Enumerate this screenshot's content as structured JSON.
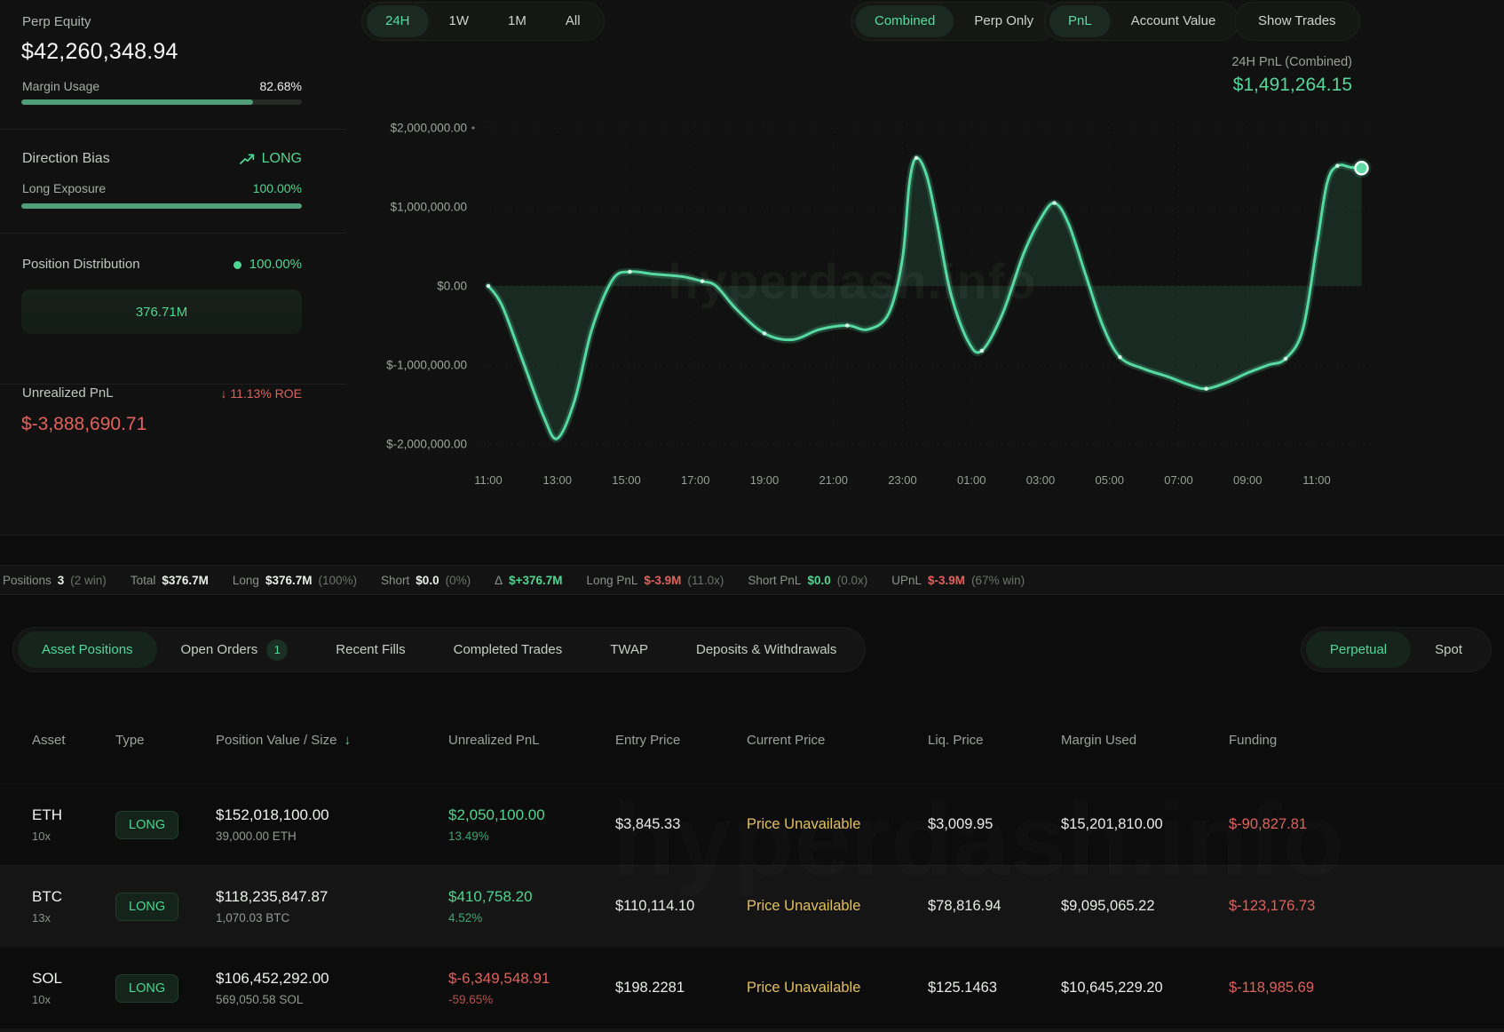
{
  "stats": {
    "perp_equity": {
      "label": "Perp Equity",
      "value": "$42,260,348.94"
    },
    "margin_usage": {
      "label": "Margin Usage",
      "value": "82.68%",
      "percent": 82.68
    },
    "direction_bias": {
      "label": "Direction Bias",
      "value": "LONG"
    },
    "long_exposure": {
      "label": "Long Exposure",
      "value": "100.00%",
      "percent": 100
    },
    "position_distribution": {
      "label": "Position Distribution",
      "value": "100.00%",
      "bar_value": "376.71M"
    },
    "unrealized_pnl": {
      "label": "Unrealized PnL",
      "roe": "11.13% ROE",
      "value": "$-3,888,690.71"
    }
  },
  "chart_controls": {
    "time_ranges": [
      {
        "label": "24H",
        "active": true
      },
      {
        "label": "1W",
        "active": false
      },
      {
        "label": "1M",
        "active": false
      },
      {
        "label": "All",
        "active": false
      }
    ],
    "source_toggle": [
      {
        "label": "Combined",
        "active": true
      },
      {
        "label": "Perp Only",
        "active": false
      }
    ],
    "metric_toggle": [
      {
        "label": "PnL",
        "active": true
      },
      {
        "label": "Account Value",
        "active": false
      }
    ],
    "show_trades_label": "Show Trades",
    "pnl_header": {
      "label": "24H PnL (Combined)",
      "value": "$1,491,264.15"
    }
  },
  "chart_data": {
    "type": "area",
    "title": "24H PnL (Combined)",
    "unit": "USD",
    "watermark": "hyperdash.info",
    "x_ticks": [
      "11:00",
      "13:00",
      "15:00",
      "17:00",
      "19:00",
      "21:00",
      "23:00",
      "01:00",
      "03:00",
      "05:00",
      "07:00",
      "09:00",
      "11:00"
    ],
    "hours_per_tick": 2,
    "y_ticks": [
      {
        "label": "$2,000,000.00",
        "value": 2000000
      },
      {
        "label": "$1,000,000.00",
        "value": 1000000
      },
      {
        "label": "$0.00",
        "value": 0
      },
      {
        "label": "$-1,000,000.00",
        "value": -1000000
      },
      {
        "label": "$-2,000,000.00",
        "value": -2000000
      }
    ],
    "ylim": [
      -2180000,
      2180000
    ],
    "grid": "dotted",
    "series": [
      {
        "name": "24H PnL (Combined)",
        "color": "#57d9a2",
        "points": [
          [
            0,
            0
          ],
          [
            0.4,
            -250000
          ],
          [
            1.0,
            -950000
          ],
          [
            1.6,
            -1650000
          ],
          [
            2.0,
            -1930000
          ],
          [
            2.5,
            -1450000
          ],
          [
            3.0,
            -550000
          ],
          [
            3.6,
            80000
          ],
          [
            4.1,
            180000
          ],
          [
            4.8,
            150000
          ],
          [
            5.6,
            120000
          ],
          [
            6.2,
            60000
          ],
          [
            6.6,
            0
          ],
          [
            7.2,
            -300000
          ],
          [
            8.0,
            -600000
          ],
          [
            8.8,
            -680000
          ],
          [
            9.6,
            -550000
          ],
          [
            10.4,
            -500000
          ],
          [
            11.0,
            -550000
          ],
          [
            11.6,
            -350000
          ],
          [
            12.0,
            350000
          ],
          [
            12.2,
            1300000
          ],
          [
            12.4,
            1620000
          ],
          [
            12.7,
            1400000
          ],
          [
            13.0,
            800000
          ],
          [
            13.4,
            -100000
          ],
          [
            13.9,
            -700000
          ],
          [
            14.3,
            -820000
          ],
          [
            14.9,
            -350000
          ],
          [
            15.5,
            400000
          ],
          [
            16.0,
            850000
          ],
          [
            16.4,
            1050000
          ],
          [
            16.8,
            800000
          ],
          [
            17.3,
            150000
          ],
          [
            17.8,
            -500000
          ],
          [
            18.3,
            -900000
          ],
          [
            19.0,
            -1050000
          ],
          [
            19.7,
            -1150000
          ],
          [
            20.3,
            -1250000
          ],
          [
            20.8,
            -1300000
          ],
          [
            21.4,
            -1220000
          ],
          [
            22.0,
            -1100000
          ],
          [
            22.6,
            -1000000
          ],
          [
            23.1,
            -920000
          ],
          [
            23.6,
            -550000
          ],
          [
            24.0,
            500000
          ],
          [
            24.3,
            1300000
          ],
          [
            24.6,
            1520000
          ],
          [
            25.0,
            1500000
          ],
          [
            25.3,
            1491264
          ]
        ]
      }
    ],
    "dot_offsets": [
      0,
      4.1,
      6.2,
      8.0,
      10.4,
      12.4,
      14.3,
      16.4,
      18.3,
      20.8,
      23.1,
      24.6
    ],
    "end_value": 1491264.15
  },
  "summary_bar": {
    "items": [
      {
        "label": "Positions",
        "value": "3",
        "paren": "(2 win)",
        "color": "white"
      },
      {
        "label": "Total",
        "value": "$376.7M",
        "paren": "",
        "color": "white"
      },
      {
        "label": "Long",
        "value": "$376.7M",
        "paren": "(100%)",
        "color": "white"
      },
      {
        "label": "Short",
        "value": "$0.0",
        "paren": "(0%)",
        "color": "white"
      },
      {
        "label": "Δ",
        "value": "$+376.7M",
        "paren": "",
        "color": "green"
      },
      {
        "label": "Long PnL",
        "value": "$-3.9M",
        "paren": "(11.0x)",
        "color": "red"
      },
      {
        "label": "Short PnL",
        "value": "$0.0",
        "paren": "(0.0x)",
        "color": "green"
      },
      {
        "label": "UPnL",
        "value": "$-3.9M",
        "paren": "(67% win)",
        "color": "red"
      }
    ]
  },
  "tabs": {
    "items": [
      {
        "label": "Asset Positions",
        "active": true
      },
      {
        "label": "Open Orders",
        "active": false,
        "badge": "1"
      },
      {
        "label": "Recent Fills",
        "active": false
      },
      {
        "label": "Completed Trades",
        "active": false
      },
      {
        "label": "TWAP",
        "active": false
      },
      {
        "label": "Deposits & Withdrawals",
        "active": false
      }
    ],
    "market_toggle": [
      {
        "label": "Perpetual",
        "active": true
      },
      {
        "label": "Spot",
        "active": false
      }
    ]
  },
  "positions_table": {
    "headers": [
      "Asset",
      "Type",
      "Position Value / Size",
      "Unrealized PnL",
      "Entry Price",
      "Current Price",
      "Liq. Price",
      "Margin Used",
      "Funding"
    ],
    "sorted_by": "Position Value / Size",
    "rows": [
      {
        "asset": "ETH",
        "leverage": "10x",
        "type": "LONG",
        "position_value": "$152,018,100.00",
        "size": "39,000.00 ETH",
        "unrealized_pnl": "$2,050,100.00",
        "unrealized_pnl_pct": "13.49%",
        "pnl_sign": "pos",
        "entry_price": "$3,845.33",
        "current_price": "Price Unavailable",
        "liq_price": "$3,009.95",
        "margin_used": "$15,201,810.00",
        "funding": "$-90,827.81"
      },
      {
        "asset": "BTC",
        "leverage": "13x",
        "type": "LONG",
        "position_value": "$118,235,847.87",
        "size": "1,070.03 BTC",
        "unrealized_pnl": "$410,758.20",
        "unrealized_pnl_pct": "4.52%",
        "pnl_sign": "pos",
        "entry_price": "$110,114.10",
        "current_price": "Price Unavailable",
        "liq_price": "$78,816.94",
        "margin_used": "$9,095,065.22",
        "funding": "$-123,176.73"
      },
      {
        "asset": "SOL",
        "leverage": "10x",
        "type": "LONG",
        "position_value": "$106,452,292.00",
        "size": "569,050.58 SOL",
        "unrealized_pnl": "$-6,349,548.91",
        "unrealized_pnl_pct": "-59.65%",
        "pnl_sign": "neg",
        "entry_price": "$198.2281",
        "current_price": "Price Unavailable",
        "liq_price": "$125.1463",
        "margin_used": "$10,645,229.20",
        "funding": "$-118,985.69"
      }
    ]
  },
  "colors": {
    "accent_green": "#4fd690",
    "chart_line": "#57d9a2",
    "negative_red": "#e0625c",
    "warning_yellow": "#e3c05c",
    "progress_green": "#4f9e77"
  }
}
